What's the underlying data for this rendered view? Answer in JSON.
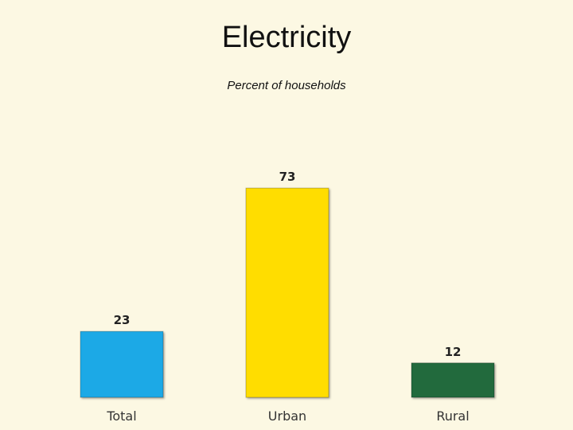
{
  "chart_data": {
    "type": "bar",
    "title": "Electricity",
    "subtitle": "Percent of households",
    "categories": [
      "Total",
      "Urban",
      "Rural"
    ],
    "values": [
      23,
      73,
      12
    ],
    "colors": [
      "#1ba9e6",
      "#ffdd00",
      "#226a3c"
    ],
    "ylim": [
      0,
      100
    ],
    "grid": false,
    "legend": "none"
  }
}
